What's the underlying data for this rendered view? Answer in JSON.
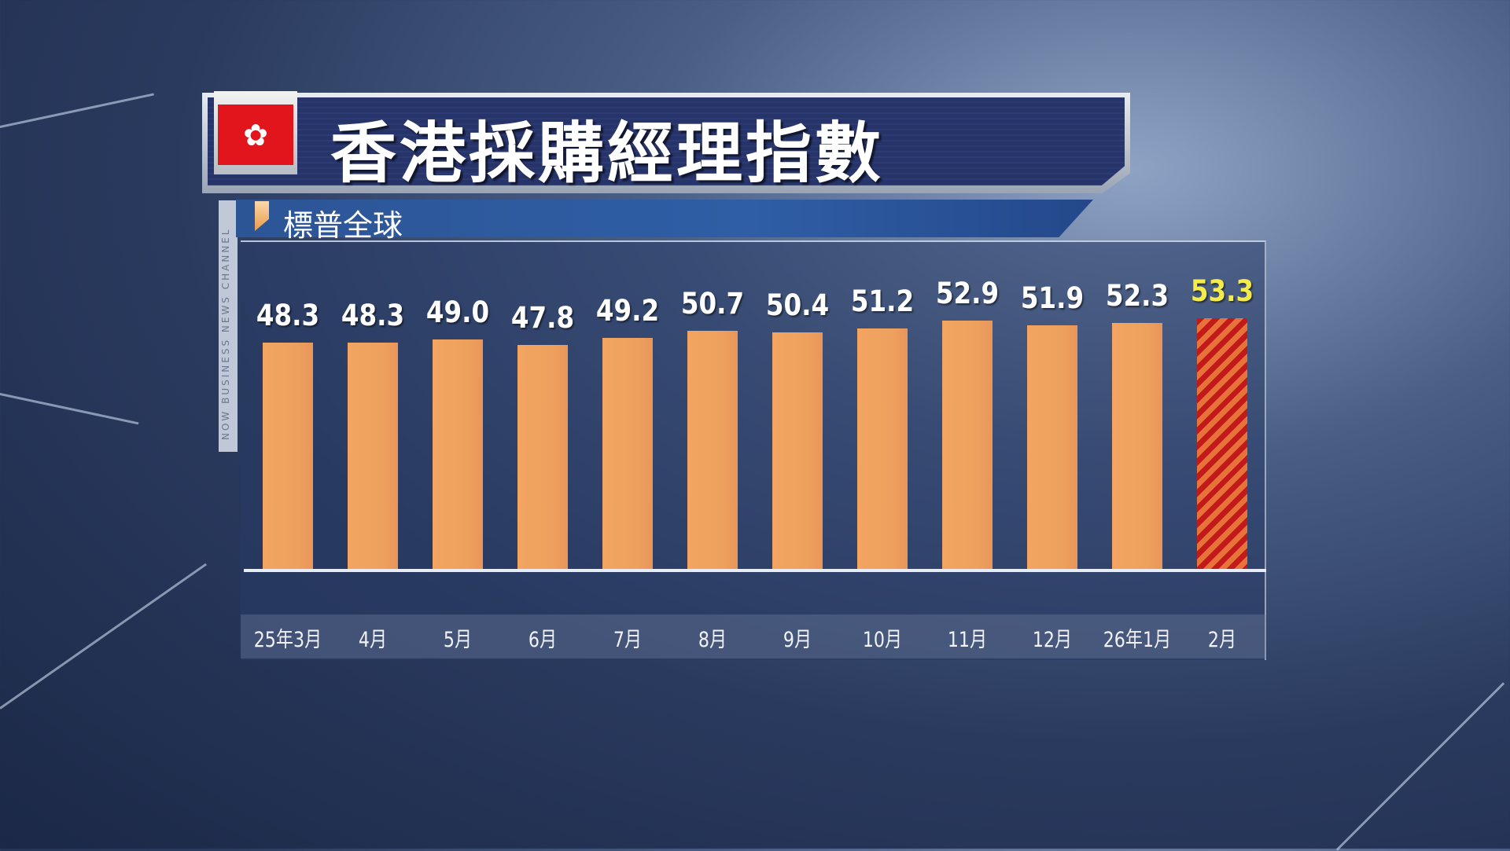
{
  "header": {
    "title": "香港採購經理指數",
    "subtitle": "標普全球",
    "flag_icon": "hong-kong-bauhinia-flag",
    "watermark": "NOW BUSINESS NEWS CHANNEL"
  },
  "colors": {
    "bar": "#eea05e",
    "highlight_bar": "#c2191a",
    "highlight_label": "#f5ec4a",
    "title_bg": "#27346a"
  },
  "chart_data": {
    "type": "bar",
    "title": "香港採購經理指數",
    "subtitle": "標普全球",
    "categories": [
      "25年3月",
      "4月",
      "5月",
      "6月",
      "7月",
      "8月",
      "9月",
      "10月",
      "11月",
      "12月",
      "26年1月",
      "2月"
    ],
    "values": [
      48.3,
      48.3,
      49.0,
      47.8,
      49.2,
      50.7,
      50.4,
      51.2,
      52.9,
      51.9,
      52.3,
      53.3
    ],
    "value_labels": [
      "48.3",
      "48.3",
      "49.0",
      "47.8",
      "49.2",
      "50.7",
      "50.4",
      "51.2",
      "52.9",
      "51.9",
      "52.3",
      "53.3"
    ],
    "highlight_index": 11,
    "grid": false
  }
}
